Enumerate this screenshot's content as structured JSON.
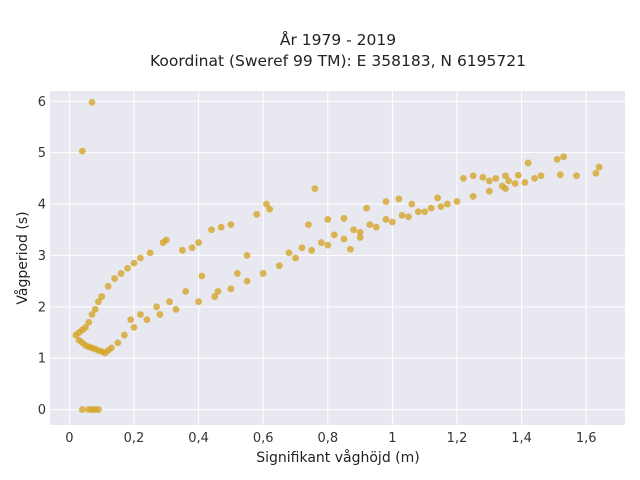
{
  "chart_data": {
    "type": "scatter",
    "title": "År 1979 - 2019",
    "subtitle": "Koordinat (Sweref 99 TM): E 358183, N 6195721",
    "xlabel": "Signifikant våghöjd (m)",
    "ylabel": "Vågperiod (s)",
    "xlim": [
      -0.06,
      1.72
    ],
    "ylim": [
      -0.3,
      6.2
    ],
    "x_ticks": [
      0,
      0.2,
      0.4,
      0.6,
      0.8,
      1.0,
      1.2,
      1.4,
      1.6
    ],
    "x_tick_labels": [
      "0",
      "0,2",
      "0,4",
      "0,6",
      "0,8",
      "1",
      "1,2",
      "1,4",
      "1,6"
    ],
    "y_ticks": [
      0,
      1,
      2,
      3,
      4,
      5,
      6
    ],
    "y_tick_labels": [
      "0",
      "1",
      "2",
      "3",
      "4",
      "5",
      "6"
    ],
    "grid": true,
    "legend": "none",
    "colors": {
      "marker": "#D4A21E",
      "plot_bg": "#E8E8F0",
      "grid": "#FFFFFF"
    },
    "series": [
      {
        "marker_color": "#D4A21E",
        "points": [
          [
            0.07,
            5.98
          ],
          [
            0.04,
            5.03
          ],
          [
            0.04,
            0.0
          ],
          [
            0.06,
            0.0
          ],
          [
            0.07,
            0.0
          ],
          [
            0.08,
            0.0
          ],
          [
            0.09,
            0.0
          ],
          [
            1.42,
            4.8
          ],
          [
            1.51,
            4.87
          ],
          [
            1.53,
            4.92
          ],
          [
            1.64,
            4.72
          ],
          [
            1.63,
            4.6
          ],
          [
            1.57,
            4.55
          ],
          [
            1.46,
            4.55
          ],
          [
            1.44,
            4.5
          ],
          [
            1.52,
            4.57
          ],
          [
            1.39,
            4.56
          ],
          [
            1.35,
            4.55
          ],
          [
            1.32,
            4.5
          ],
          [
            1.36,
            4.45
          ],
          [
            1.38,
            4.4
          ],
          [
            1.28,
            4.52
          ],
          [
            1.25,
            4.55
          ],
          [
            1.22,
            4.5
          ],
          [
            1.3,
            4.45
          ],
          [
            1.34,
            4.35
          ],
          [
            1.41,
            4.42
          ],
          [
            0.76,
            4.3
          ],
          [
            0.61,
            4.0
          ],
          [
            0.62,
            3.9
          ],
          [
            0.58,
            3.8
          ],
          [
            0.5,
            3.6
          ],
          [
            0.47,
            3.55
          ],
          [
            0.44,
            3.5
          ],
          [
            0.4,
            3.25
          ],
          [
            0.38,
            3.15
          ],
          [
            0.35,
            3.1
          ],
          [
            0.3,
            3.3
          ],
          [
            0.29,
            3.25
          ],
          [
            0.25,
            3.05
          ],
          [
            0.22,
            2.95
          ],
          [
            0.2,
            2.85
          ],
          [
            0.18,
            2.75
          ],
          [
            0.16,
            2.65
          ],
          [
            0.14,
            2.55
          ],
          [
            0.12,
            2.4
          ],
          [
            0.1,
            2.2
          ],
          [
            0.09,
            2.1
          ],
          [
            0.08,
            1.95
          ],
          [
            0.07,
            1.85
          ],
          [
            0.06,
            1.7
          ],
          [
            0.05,
            1.6
          ],
          [
            0.04,
            1.55
          ],
          [
            0.03,
            1.5
          ],
          [
            0.02,
            1.45
          ],
          [
            0.03,
            1.35
          ],
          [
            0.04,
            1.3
          ],
          [
            0.05,
            1.25
          ],
          [
            0.06,
            1.22
          ],
          [
            0.07,
            1.2
          ],
          [
            0.08,
            1.18
          ],
          [
            0.09,
            1.15
          ],
          [
            0.1,
            1.13
          ],
          [
            0.11,
            1.1
          ],
          [
            0.12,
            1.15
          ],
          [
            0.13,
            1.2
          ],
          [
            0.15,
            1.3
          ],
          [
            0.17,
            1.45
          ],
          [
            0.2,
            1.6
          ],
          [
            0.24,
            1.75
          ],
          [
            0.28,
            1.85
          ],
          [
            0.33,
            1.95
          ],
          [
            0.4,
            2.1
          ],
          [
            0.45,
            2.2
          ],
          [
            0.5,
            2.35
          ],
          [
            0.55,
            2.5
          ],
          [
            0.6,
            2.65
          ],
          [
            0.65,
            2.8
          ],
          [
            0.7,
            2.95
          ],
          [
            0.75,
            3.1
          ],
          [
            0.8,
            3.2
          ],
          [
            0.85,
            3.32
          ],
          [
            0.9,
            3.45
          ],
          [
            0.95,
            3.55
          ],
          [
            1.0,
            3.65
          ],
          [
            1.05,
            3.75
          ],
          [
            1.1,
            3.85
          ],
          [
            1.15,
            3.95
          ],
          [
            1.2,
            4.05
          ],
          [
            1.25,
            4.15
          ],
          [
            1.3,
            4.25
          ],
          [
            1.35,
            4.3
          ],
          [
            0.41,
            2.6
          ],
          [
            0.46,
            2.3
          ],
          [
            0.55,
            3.0
          ],
          [
            0.52,
            2.65
          ],
          [
            0.68,
            3.05
          ],
          [
            0.72,
            3.15
          ],
          [
            0.78,
            3.25
          ],
          [
            0.82,
            3.4
          ],
          [
            0.88,
            3.5
          ],
          [
            0.93,
            3.6
          ],
          [
            0.98,
            3.7
          ],
          [
            1.03,
            3.78
          ],
          [
            1.08,
            3.85
          ],
          [
            1.12,
            3.92
          ],
          [
            1.17,
            4.0
          ],
          [
            0.92,
            3.92
          ],
          [
            0.98,
            4.05
          ],
          [
            1.02,
            4.1
          ],
          [
            1.06,
            4.0
          ],
          [
            1.14,
            4.12
          ],
          [
            0.87,
            3.12
          ],
          [
            0.9,
            3.35
          ],
          [
            0.85,
            3.72
          ],
          [
            0.8,
            3.7
          ],
          [
            0.74,
            3.6
          ],
          [
            0.31,
            2.1
          ],
          [
            0.36,
            2.3
          ],
          [
            0.27,
            2.0
          ],
          [
            0.22,
            1.85
          ],
          [
            0.19,
            1.75
          ]
        ]
      }
    ]
  }
}
